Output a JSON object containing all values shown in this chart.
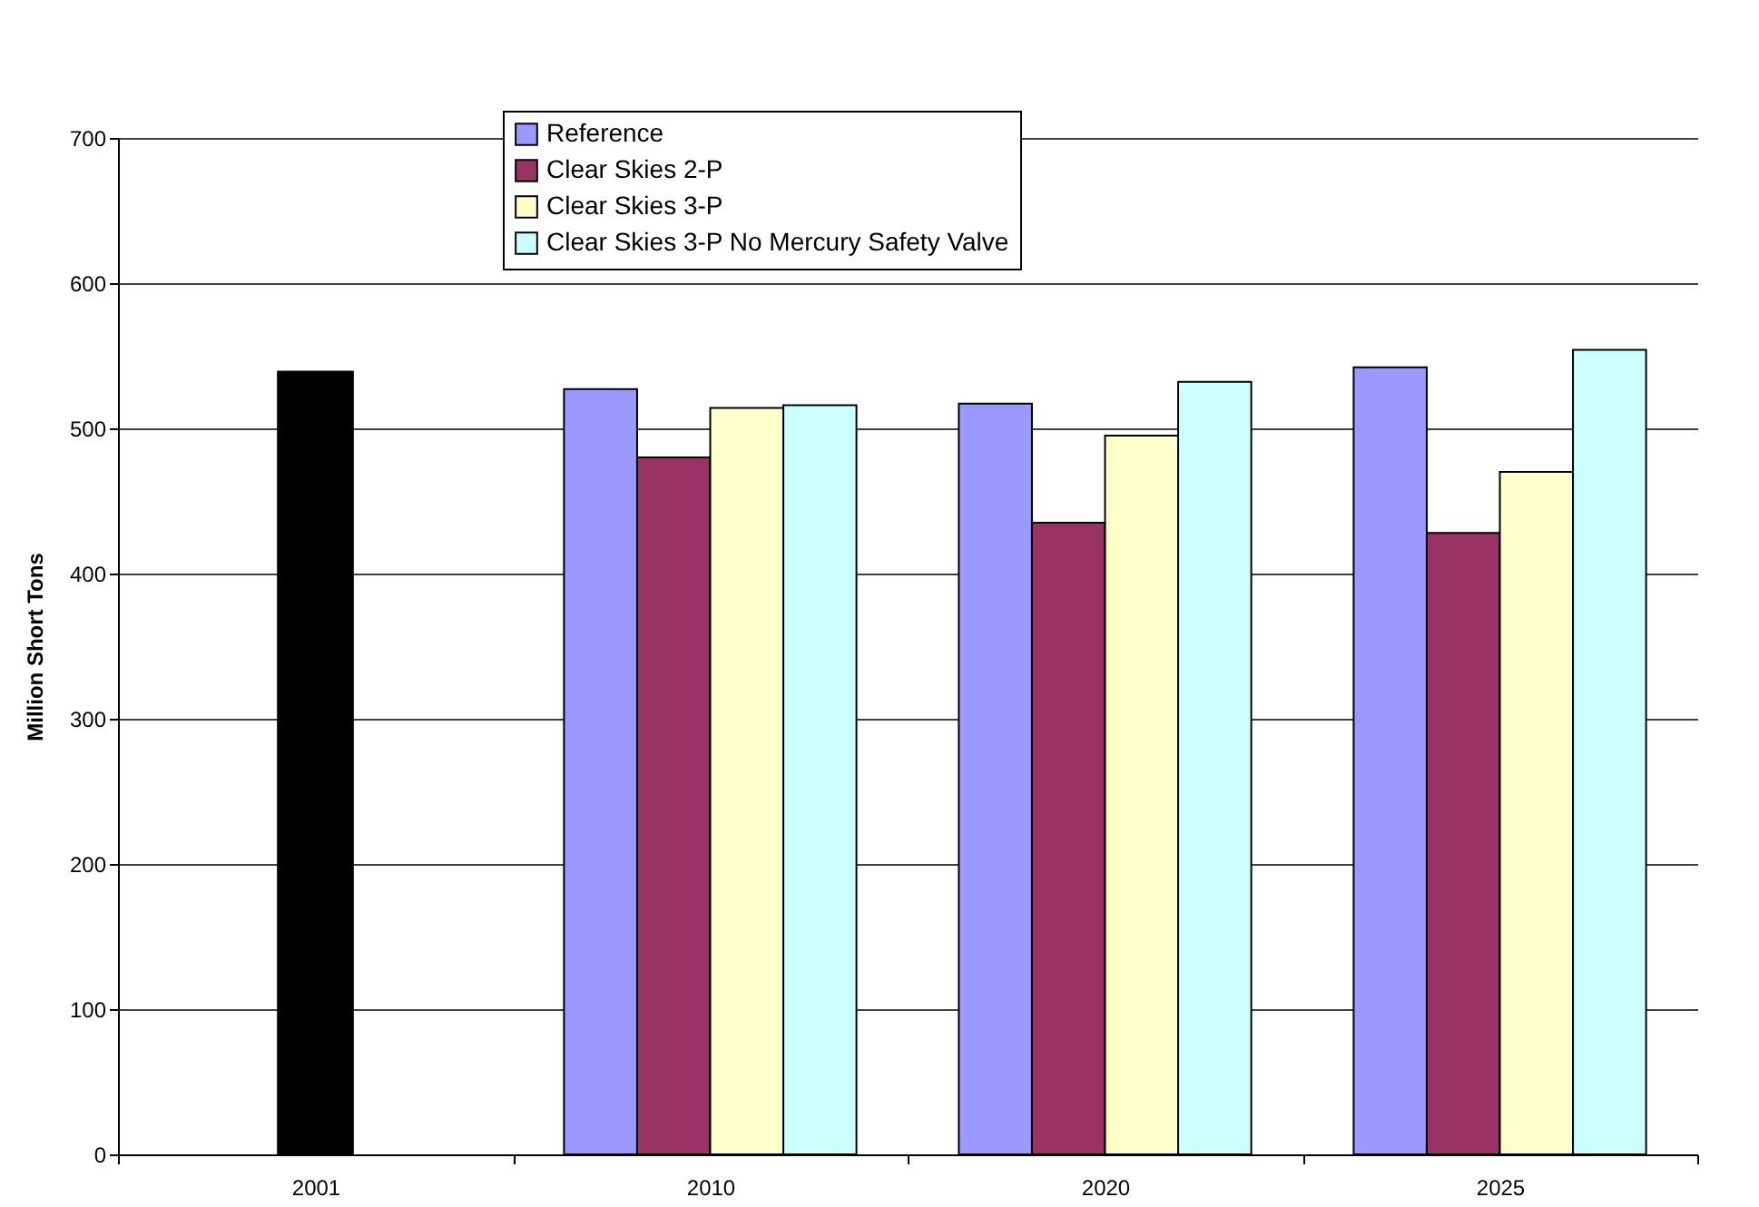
{
  "chart_data": {
    "type": "bar",
    "ylabel": "Million Short Tons",
    "categories": [
      "2001",
      "2010",
      "2020",
      "2025"
    ],
    "series": [
      {
        "name": "Reference",
        "color": "#9999ff",
        "values": [
          null,
          527,
          517,
          542
        ]
      },
      {
        "name": "Clear Skies 2-P",
        "color": "#993366",
        "values": [
          null,
          480,
          435,
          428
        ]
      },
      {
        "name": "Clear Skies 3-P",
        "color": "#ffffcc",
        "values": [
          null,
          514,
          495,
          470
        ]
      },
      {
        "name": "Clear Skies 3-P No Mercury Safety Valve",
        "color": "#ccffff",
        "values": [
          null,
          516,
          532,
          554
        ]
      },
      {
        "color": "#000000",
        "values": [
          539,
          null,
          null,
          null
        ]
      }
    ],
    "ylim": [
      0,
      700
    ],
    "yticks": [
      0,
      100,
      200,
      300,
      400,
      500,
      600,
      700
    ],
    "grid": "y",
    "legend": "top"
  }
}
